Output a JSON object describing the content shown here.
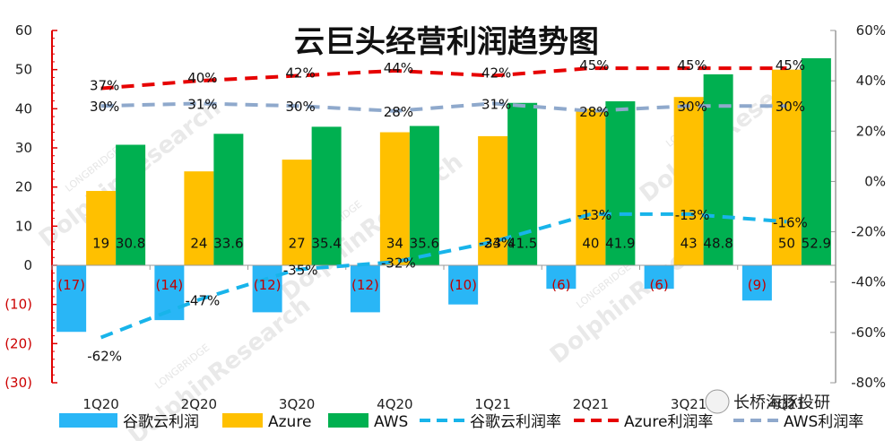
{
  "chart_data": {
    "type": "bar",
    "title": "云巨头经营利润趋势图",
    "categories": [
      "1Q20",
      "2Q20",
      "3Q20",
      "4Q20",
      "1Q21",
      "2Q21",
      "3Q21",
      "4Q21"
    ],
    "y_left": {
      "ylim": [
        -30,
        60
      ],
      "ticks": [
        "60",
        "50",
        "40",
        "30",
        "20",
        "10",
        "0",
        "(10)",
        "(20)",
        "(30)"
      ]
    },
    "y_right": {
      "ylim": [
        -80,
        60
      ],
      "ticks": [
        "60%",
        "40%",
        "20%",
        "0%",
        "-20%",
        "-40%",
        "-60%",
        "-80%"
      ]
    },
    "series": [
      {
        "name": "谷歌云利润",
        "kind": "bar",
        "axis": "left",
        "color": "#29b6f6",
        "values": [
          -17,
          -14,
          -12,
          -12,
          -10,
          -6,
          -6,
          -9
        ],
        "labels": [
          "(17)",
          "(14)",
          "(12)",
          "(12)",
          "(10)",
          "(6)",
          "(6)",
          "(9)"
        ]
      },
      {
        "name": "Azure",
        "kind": "bar",
        "axis": "left",
        "color": "#ffc000",
        "values": [
          19,
          24,
          27,
          34,
          33,
          40,
          43,
          50
        ],
        "labels": [
          "19",
          "24",
          "27",
          "34",
          "33",
          "40",
          "43",
          "50"
        ]
      },
      {
        "name": "AWS",
        "kind": "bar",
        "axis": "left",
        "color": "#00b050",
        "values": [
          30.8,
          33.6,
          35.4,
          35.6,
          41.5,
          41.9,
          48.8,
          52.9
        ],
        "labels": [
          "30.8",
          "33.6",
          "35.4",
          "35.6",
          "41.5",
          "41.9",
          "48.8",
          "52.9"
        ]
      },
      {
        "name": "谷歌云利润率",
        "kind": "line",
        "axis": "right",
        "color": "#18b4ea",
        "values": [
          -62,
          -47,
          -35,
          -32,
          -24,
          -13,
          -13,
          -16
        ],
        "labels": [
          "-62%",
          "-47%",
          "-35%",
          "-32%",
          "-24%",
          "-13%",
          "-13%",
          "-16%"
        ]
      },
      {
        "name": "Azure利润率",
        "kind": "line",
        "axis": "right",
        "color": "#e60000",
        "values": [
          37,
          40,
          42,
          44,
          42,
          45,
          45,
          45
        ],
        "labels": [
          "37%",
          "40%",
          "42%",
          "44%",
          "42%",
          "45%",
          "45%",
          "45%"
        ]
      },
      {
        "name": "AWS利润率",
        "kind": "line",
        "axis": "right",
        "color": "#8fa9cc",
        "values": [
          30,
          31,
          30,
          28,
          31,
          28,
          30,
          30
        ],
        "labels": [
          "30%",
          "31%",
          "30%",
          "28%",
          "31%",
          "28%",
          "30%",
          "30%"
        ]
      }
    ],
    "legend_position": "bottom",
    "grid": false
  },
  "watermark": "DolphinResearch",
  "watermark_small": "LONGBRIDGE",
  "brand": "长桥海豚投研"
}
